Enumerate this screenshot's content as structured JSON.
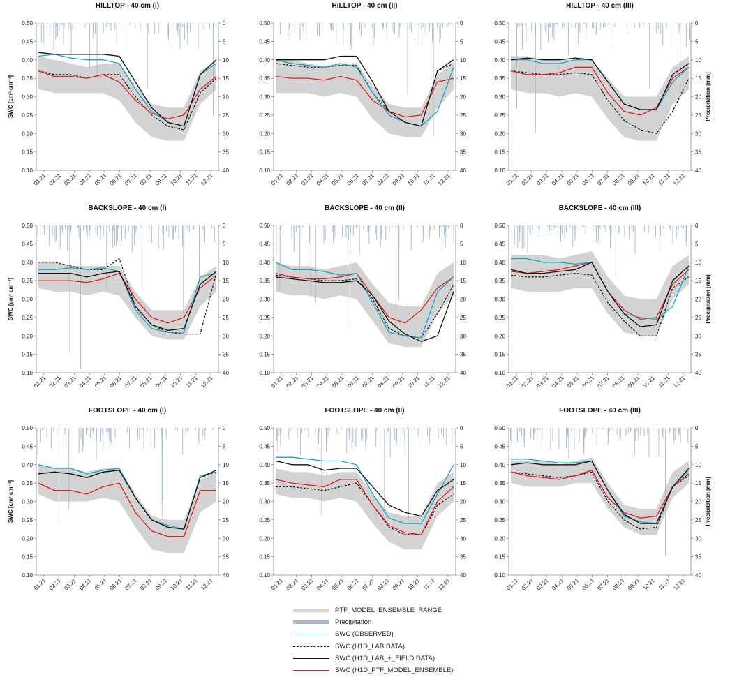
{
  "chart_data": {
    "type": "line",
    "x_ticks": [
      "01.21",
      "02.21",
      "03.21",
      "04.21",
      "05.21",
      "06.21",
      "07.21",
      "08.21",
      "09.21",
      "10.21",
      "11.21",
      "12.21"
    ],
    "y_left_ticks": [
      "0.10",
      "0.15",
      "0.20",
      "0.25",
      "0.30",
      "0.35",
      "0.40",
      "0.45",
      "0.50"
    ],
    "y_right_ticks": [
      "0",
      "5",
      "10",
      "15",
      "20",
      "25",
      "30",
      "35",
      "40"
    ],
    "ylabel_left": "SWC [cm³ cm⁻³]",
    "ylabel_right": "Precipitation [mm]",
    "ylim_left": [
      0.1,
      0.5
    ],
    "ylim_right": [
      40,
      0
    ],
    "colors": {
      "range": "#d3d3d3",
      "precip": "#a9b8cc",
      "observed": "#1ba5c4",
      "lab": "#111111",
      "lab_field": "#111111",
      "ptf": "#e02020"
    },
    "legend": {
      "items": [
        {
          "key": "range",
          "label": "PTF_MODEL_ENSEMBLE_RANGE"
        },
        {
          "key": "precip",
          "label": "Precipitation"
        },
        {
          "key": "observed",
          "label": "SWC (OBSERVED)"
        },
        {
          "key": "lab",
          "label": "SWC (H1D_LAB DATA)"
        },
        {
          "key": "lab_field",
          "label": "SWC (H1D_LAB_+_FIELD DATA)"
        },
        {
          "key": "ptf",
          "label": "SWC (H1D_PTF_MODEL_ENSEMBLE)"
        }
      ]
    },
    "panels": [
      {
        "title": "HILLTOP - 40 cm (I)",
        "observed": [
          0.41,
          0.415,
          0.405,
          0.4,
          0.4,
          0.39,
          0.32,
          0.26,
          0.23,
          0.22,
          0.36,
          0.39
        ],
        "lab": [
          0.37,
          0.36,
          0.36,
          0.35,
          0.36,
          0.36,
          0.3,
          0.25,
          0.22,
          0.21,
          0.31,
          0.35
        ],
        "lab_field": [
          0.42,
          0.415,
          0.415,
          0.415,
          0.415,
          0.41,
          0.34,
          0.27,
          0.23,
          0.22,
          0.36,
          0.4
        ],
        "ptf": [
          0.37,
          0.355,
          0.355,
          0.35,
          0.36,
          0.34,
          0.29,
          0.255,
          0.24,
          0.25,
          0.32,
          0.355
        ],
        "range_low": [
          0.32,
          0.31,
          0.31,
          0.31,
          0.31,
          0.29,
          0.23,
          0.19,
          0.18,
          0.18,
          0.28,
          0.32
        ],
        "range_high": [
          0.41,
          0.4,
          0.39,
          0.38,
          0.39,
          0.39,
          0.33,
          0.28,
          0.27,
          0.27,
          0.37,
          0.4
        ]
      },
      {
        "title": "HILLTOP - 40 cm (II)",
        "observed": [
          0.4,
          0.39,
          0.385,
          0.38,
          0.39,
          0.38,
          0.31,
          0.25,
          0.23,
          0.22,
          0.26,
          0.38
        ],
        "lab": [
          0.39,
          0.385,
          0.38,
          0.38,
          0.385,
          0.385,
          0.31,
          0.26,
          0.23,
          0.22,
          0.37,
          0.39
        ],
        "lab_field": [
          0.4,
          0.4,
          0.4,
          0.4,
          0.41,
          0.41,
          0.34,
          0.26,
          0.23,
          0.22,
          0.37,
          0.4
        ],
        "ptf": [
          0.355,
          0.35,
          0.35,
          0.345,
          0.355,
          0.345,
          0.29,
          0.26,
          0.245,
          0.25,
          0.34,
          0.35
        ],
        "range_low": [
          0.31,
          0.31,
          0.31,
          0.3,
          0.31,
          0.3,
          0.24,
          0.2,
          0.19,
          0.19,
          0.27,
          0.32
        ],
        "range_high": [
          0.4,
          0.4,
          0.39,
          0.38,
          0.39,
          0.39,
          0.33,
          0.28,
          0.27,
          0.27,
          0.36,
          0.39
        ]
      },
      {
        "title": "HILLTOP - 40 cm (III)",
        "observed": [
          0.4,
          0.4,
          0.39,
          0.39,
          0.4,
          0.4,
          0.34,
          0.28,
          0.265,
          0.265,
          0.34,
          0.38
        ],
        "lab": [
          0.37,
          0.365,
          0.36,
          0.36,
          0.365,
          0.36,
          0.29,
          0.235,
          0.21,
          0.2,
          0.26,
          0.35
        ],
        "lab_field": [
          0.4,
          0.405,
          0.4,
          0.4,
          0.405,
          0.4,
          0.34,
          0.28,
          0.265,
          0.265,
          0.36,
          0.39
        ],
        "ptf": [
          0.37,
          0.36,
          0.36,
          0.365,
          0.38,
          0.38,
          0.31,
          0.26,
          0.25,
          0.27,
          0.35,
          0.38
        ],
        "range_low": [
          0.32,
          0.31,
          0.31,
          0.3,
          0.31,
          0.3,
          0.24,
          0.19,
          0.18,
          0.18,
          0.28,
          0.32
        ],
        "range_high": [
          0.41,
          0.41,
          0.4,
          0.4,
          0.4,
          0.4,
          0.35,
          0.3,
          0.3,
          0.3,
          0.38,
          0.41
        ]
      },
      {
        "title": "BACKSLOPE - 40 cm (I)",
        "observed": [
          0.38,
          0.38,
          0.385,
          0.38,
          0.385,
          0.375,
          0.27,
          0.22,
          0.21,
          0.21,
          0.36,
          0.37
        ],
        "lab": [
          0.4,
          0.4,
          0.39,
          0.38,
          0.38,
          0.41,
          0.28,
          0.23,
          0.21,
          0.205,
          0.205,
          0.37
        ],
        "lab_field": [
          0.37,
          0.37,
          0.37,
          0.36,
          0.37,
          0.375,
          0.28,
          0.23,
          0.215,
          0.22,
          0.34,
          0.375
        ],
        "ptf": [
          0.35,
          0.35,
          0.35,
          0.345,
          0.355,
          0.37,
          0.3,
          0.25,
          0.235,
          0.25,
          0.33,
          0.365
        ],
        "range_low": [
          0.33,
          0.32,
          0.32,
          0.31,
          0.32,
          0.31,
          0.25,
          0.2,
          0.19,
          0.19,
          0.28,
          0.32
        ],
        "range_high": [
          0.4,
          0.4,
          0.39,
          0.39,
          0.39,
          0.39,
          0.32,
          0.27,
          0.27,
          0.27,
          0.36,
          0.39
        ]
      },
      {
        "title": "BACKSLOPE - 40 cm (II)",
        "observed": [
          0.4,
          0.38,
          0.38,
          0.375,
          0.365,
          0.37,
          0.29,
          0.21,
          0.2,
          0.195,
          0.32,
          0.36
        ],
        "lab": [
          0.365,
          0.36,
          0.355,
          0.35,
          0.35,
          0.355,
          0.3,
          0.22,
          0.2,
          0.195,
          0.26,
          0.34
        ],
        "lab_field": [
          0.36,
          0.355,
          0.35,
          0.345,
          0.345,
          0.35,
          0.31,
          0.24,
          0.205,
          0.185,
          0.2,
          0.32
        ],
        "ptf": [
          0.37,
          0.36,
          0.355,
          0.355,
          0.36,
          0.37,
          0.31,
          0.25,
          0.235,
          0.27,
          0.33,
          0.36
        ],
        "range_low": [
          0.32,
          0.31,
          0.31,
          0.3,
          0.31,
          0.3,
          0.24,
          0.18,
          0.17,
          0.17,
          0.26,
          0.31
        ],
        "range_high": [
          0.4,
          0.39,
          0.39,
          0.38,
          0.39,
          0.4,
          0.34,
          0.29,
          0.28,
          0.28,
          0.37,
          0.4
        ]
      },
      {
        "title": "BACKSLOPE - 40 cm (III)",
        "observed": [
          0.41,
          0.41,
          0.4,
          0.4,
          0.395,
          0.4,
          0.32,
          0.26,
          0.25,
          0.245,
          0.28,
          0.39
        ],
        "lab": [
          0.365,
          0.36,
          0.36,
          0.365,
          0.37,
          0.365,
          0.29,
          0.24,
          0.2,
          0.2,
          0.33,
          0.36
        ],
        "lab_field": [
          0.38,
          0.37,
          0.37,
          0.375,
          0.38,
          0.4,
          0.32,
          0.26,
          0.225,
          0.23,
          0.35,
          0.39
        ],
        "ptf": [
          0.375,
          0.37,
          0.375,
          0.38,
          0.39,
          0.4,
          0.32,
          0.27,
          0.245,
          0.25,
          0.34,
          0.38
        ],
        "range_low": [
          0.33,
          0.32,
          0.32,
          0.32,
          0.33,
          0.33,
          0.26,
          0.21,
          0.2,
          0.2,
          0.3,
          0.34
        ],
        "range_high": [
          0.42,
          0.42,
          0.42,
          0.41,
          0.42,
          0.43,
          0.36,
          0.31,
          0.3,
          0.3,
          0.39,
          0.42
        ]
      },
      {
        "title": "FOOTSLOPE - 40 cm (I)",
        "observed": [
          0.4,
          0.39,
          0.39,
          0.375,
          0.385,
          0.39,
          0.31,
          0.25,
          0.235,
          0.225,
          0.37,
          0.38
        ],
        "lab": [
          0.375,
          0.38,
          0.375,
          0.365,
          0.38,
          0.385,
          0.31,
          0.25,
          0.23,
          0.225,
          0.365,
          0.38
        ],
        "lab_field": [
          0.375,
          0.38,
          0.375,
          0.365,
          0.38,
          0.385,
          0.31,
          0.25,
          0.23,
          0.225,
          0.365,
          0.385
        ],
        "ptf": [
          0.35,
          0.33,
          0.33,
          0.32,
          0.34,
          0.35,
          0.27,
          0.22,
          0.205,
          0.205,
          0.33,
          0.33
        ],
        "range_low": [
          0.32,
          0.3,
          0.3,
          0.3,
          0.31,
          0.3,
          0.23,
          0.17,
          0.16,
          0.16,
          0.27,
          0.3
        ],
        "range_high": [
          0.4,
          0.39,
          0.39,
          0.38,
          0.39,
          0.39,
          0.32,
          0.26,
          0.25,
          0.25,
          0.36,
          0.38
        ]
      },
      {
        "title": "FOOTSLOPE - 40 cm (II)",
        "observed": [
          0.42,
          0.42,
          0.415,
          0.41,
          0.41,
          0.4,
          0.32,
          0.255,
          0.24,
          0.24,
          0.32,
          0.4
        ],
        "lab": [
          0.34,
          0.34,
          0.335,
          0.33,
          0.34,
          0.35,
          0.29,
          0.23,
          0.21,
          0.21,
          0.29,
          0.32
        ],
        "lab_field": [
          0.41,
          0.4,
          0.4,
          0.385,
          0.39,
          0.39,
          0.34,
          0.29,
          0.27,
          0.26,
          0.33,
          0.36
        ],
        "ptf": [
          0.36,
          0.35,
          0.345,
          0.34,
          0.36,
          0.36,
          0.29,
          0.235,
          0.215,
          0.21,
          0.3,
          0.34
        ],
        "range_low": [
          0.32,
          0.31,
          0.31,
          0.3,
          0.31,
          0.3,
          0.24,
          0.19,
          0.17,
          0.17,
          0.26,
          0.3
        ],
        "range_high": [
          0.39,
          0.38,
          0.38,
          0.37,
          0.38,
          0.38,
          0.32,
          0.27,
          0.26,
          0.26,
          0.35,
          0.38
        ]
      },
      {
        "title": "FOOTSLOPE - 40 cm (III)",
        "observed": [
          0.415,
          0.415,
          0.41,
          0.405,
          0.405,
          0.41,
          0.33,
          0.26,
          0.245,
          0.24,
          0.34,
          0.385
        ],
        "lab": [
          0.38,
          0.375,
          0.37,
          0.365,
          0.37,
          0.38,
          0.3,
          0.25,
          0.225,
          0.23,
          0.34,
          0.37
        ],
        "lab_field": [
          0.4,
          0.405,
          0.4,
          0.4,
          0.4,
          0.41,
          0.33,
          0.265,
          0.24,
          0.24,
          0.34,
          0.39
        ],
        "ptf": [
          0.38,
          0.37,
          0.365,
          0.36,
          0.37,
          0.385,
          0.31,
          0.27,
          0.255,
          0.26,
          0.34,
          0.375
        ],
        "range_low": [
          0.35,
          0.34,
          0.34,
          0.34,
          0.35,
          0.35,
          0.28,
          0.23,
          0.21,
          0.21,
          0.31,
          0.35
        ],
        "range_high": [
          0.41,
          0.41,
          0.41,
          0.4,
          0.41,
          0.42,
          0.35,
          0.29,
          0.28,
          0.28,
          0.38,
          0.41
        ]
      }
    ]
  }
}
